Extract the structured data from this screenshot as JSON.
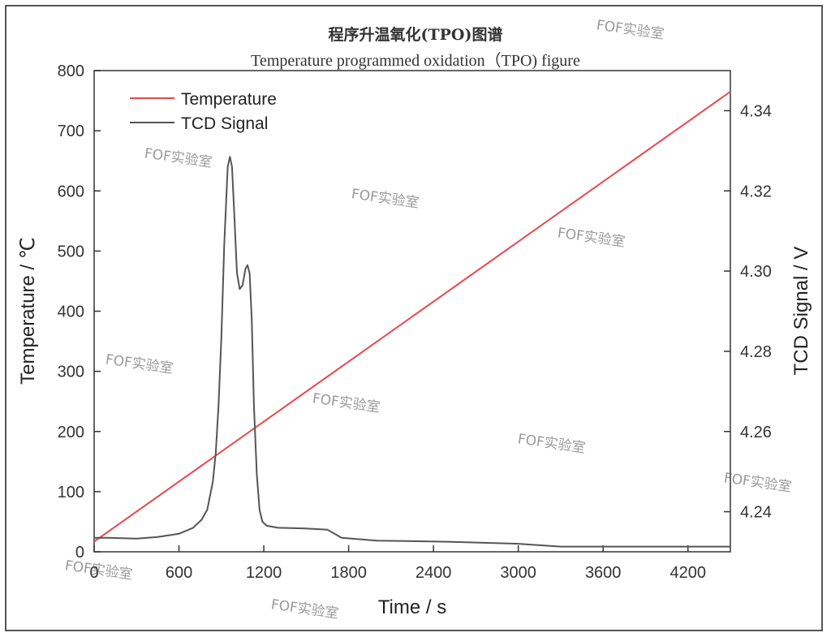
{
  "chart_data": {
    "type": "line",
    "title": "程序升温氧化(TPO)图谱",
    "subtitle": "Temperature programmed oxidation（TPO) figure",
    "xlabel": "Time / s",
    "ylabel_left": "Temperature / ℃",
    "ylabel_right": "TCD Signal / V",
    "xlim": [
      0,
      4500
    ],
    "ylim_left": [
      0,
      800
    ],
    "ylim_right": [
      4.23,
      4.35
    ],
    "x_ticks": [
      "0",
      "600",
      "1200",
      "1800",
      "2400",
      "3000",
      "3600",
      "4200"
    ],
    "y_left_ticks": [
      "0",
      "100",
      "200",
      "300",
      "400",
      "500",
      "600",
      "700",
      "800"
    ],
    "y_right_ticks": [
      "4.24",
      "4.26",
      "4.28",
      "4.30",
      "4.32",
      "4.34"
    ],
    "legend_position": "top-left",
    "grid": false,
    "series": [
      {
        "name": "Temperature",
        "axis": "left",
        "color": "#e8474f",
        "x": [
          0,
          4500
        ],
        "y": [
          17,
          765
        ]
      },
      {
        "name": "TCD Signal",
        "axis": "right",
        "color": "#555555",
        "x": [
          0,
          100,
          300,
          450,
          600,
          700,
          760,
          800,
          840,
          860,
          880,
          900,
          920,
          945,
          960,
          975,
          990,
          1010,
          1030,
          1050,
          1070,
          1085,
          1100,
          1115,
          1130,
          1150,
          1170,
          1190,
          1220,
          1300,
          1500,
          1650,
          1750,
          2000,
          2500,
          3000,
          3300,
          3600,
          4000,
          4500
        ],
        "y": [
          4.2335,
          4.2335,
          4.2333,
          4.2337,
          4.2345,
          4.236,
          4.238,
          4.2405,
          4.2475,
          4.2545,
          4.2665,
          4.2835,
          4.3065,
          4.326,
          4.3285,
          4.326,
          4.315,
          4.2995,
          4.2955,
          4.2965,
          4.3005,
          4.3015,
          4.2995,
          4.2875,
          4.2665,
          4.2495,
          4.2405,
          4.2375,
          4.2365,
          4.236,
          4.2358,
          4.2355,
          4.2335,
          4.2328,
          4.2325,
          4.232,
          4.2313,
          4.2313,
          4.2313,
          4.2313
        ]
      }
    ]
  },
  "watermark_text": "FOF实验室"
}
